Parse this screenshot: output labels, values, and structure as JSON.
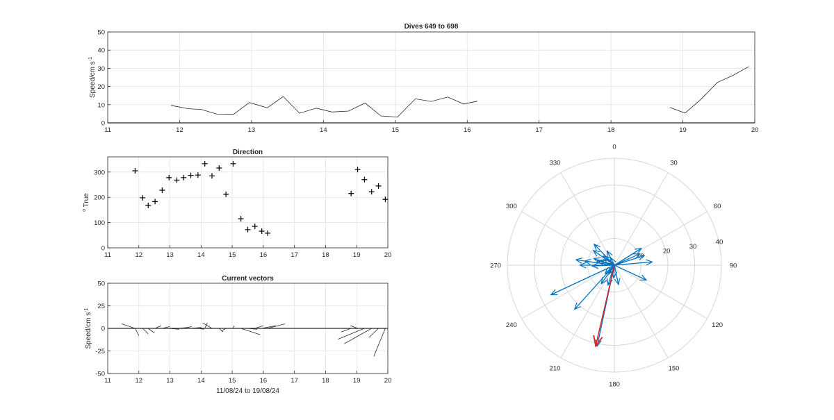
{
  "chart_data": [
    {
      "type": "line",
      "title": "Dives 649 to 698",
      "ylabel_main": "Speed/cm s",
      "ylabel_sup": "-1",
      "xlim": [
        11,
        20
      ],
      "ylim": [
        0,
        50
      ],
      "xticks": [
        11,
        12,
        13,
        14,
        15,
        16,
        17,
        18,
        19,
        20
      ],
      "yticks": [
        0,
        10,
        20,
        30,
        40,
        50
      ],
      "grid": true,
      "segments": [
        [
          [
            11.88,
            9.6
          ],
          [
            12.12,
            7.8
          ],
          [
            12.3,
            7.4
          ],
          [
            12.52,
            4.8
          ],
          [
            12.75,
            4.7
          ],
          [
            12.97,
            11.2
          ],
          [
            13.22,
            8.3
          ],
          [
            13.44,
            14.5
          ],
          [
            13.67,
            5.3
          ],
          [
            13.9,
            8.1
          ],
          [
            14.12,
            6.0
          ],
          [
            14.35,
            6.5
          ],
          [
            14.58,
            10.9
          ],
          [
            14.8,
            3.8
          ],
          [
            15.03,
            3.2
          ],
          [
            15.28,
            13.2
          ],
          [
            15.5,
            11.8
          ],
          [
            15.73,
            14.2
          ],
          [
            15.95,
            10.4
          ],
          [
            16.14,
            11.9
          ]
        ],
        [
          [
            18.82,
            8.5
          ],
          [
            19.03,
            5.4
          ],
          [
            19.25,
            12.9
          ],
          [
            19.48,
            22.2
          ],
          [
            19.7,
            26.2
          ],
          [
            19.92,
            31.0
          ]
        ]
      ]
    },
    {
      "type": "scatter",
      "title": "Direction",
      "ylabel_main": "True",
      "ylabel_sup": "o",
      "xlim": [
        11,
        20
      ],
      "ylim": [
        0,
        360
      ],
      "xticks": [
        11,
        12,
        13,
        14,
        15,
        16,
        17,
        18,
        19,
        20
      ],
      "yticks": [
        0,
        100,
        200,
        300
      ],
      "grid": true,
      "marker": "+",
      "points": [
        [
          11.88,
          305
        ],
        [
          12.12,
          198
        ],
        [
          12.3,
          168
        ],
        [
          12.52,
          183
        ],
        [
          12.75,
          228
        ],
        [
          12.97,
          278
        ],
        [
          13.22,
          268
        ],
        [
          13.44,
          278
        ],
        [
          13.67,
          287
        ],
        [
          13.9,
          288
        ],
        [
          14.12,
          333
        ],
        [
          14.35,
          285
        ],
        [
          14.58,
          316
        ],
        [
          14.8,
          212
        ],
        [
          15.03,
          333
        ],
        [
          15.28,
          115
        ],
        [
          15.5,
          72
        ],
        [
          15.73,
          85
        ],
        [
          15.95,
          66
        ],
        [
          16.14,
          58
        ],
        [
          18.82,
          215
        ],
        [
          19.03,
          310
        ],
        [
          19.25,
          270
        ],
        [
          19.48,
          222
        ],
        [
          19.7,
          245
        ],
        [
          19.92,
          192
        ]
      ]
    },
    {
      "type": "line",
      "title": "Current vectors",
      "ylabel_main": "Speed/cm s",
      "ylabel_sup": "-1",
      "xlabel": "11/08/24 to 19/08/24",
      "xlim": [
        11,
        20
      ],
      "ylim": [
        -50,
        50
      ],
      "xticks": [
        11,
        12,
        13,
        14,
        15,
        16,
        17,
        18,
        19,
        20
      ],
      "yticks": [
        -50,
        -25,
        0,
        25,
        50
      ],
      "grid": true,
      "segments": [
        [
          [
            11.45,
            5
          ],
          [
            11.88,
            0
          ]
        ],
        [
          [
            11.88,
            0
          ],
          [
            12.0,
            -8
          ]
        ],
        [
          [
            12.12,
            0
          ],
          [
            12.3,
            -6
          ]
        ],
        [
          [
            12.3,
            0
          ],
          [
            12.5,
            -5
          ]
        ],
        [
          [
            12.52,
            0
          ],
          [
            12.72,
            3
          ]
        ],
        [
          [
            12.75,
            0
          ],
          [
            13.0,
            2
          ]
        ],
        [
          [
            12.97,
            0
          ],
          [
            13.3,
            -1
          ]
        ],
        [
          [
            13.22,
            0
          ],
          [
            13.6,
            1
          ]
        ],
        [
          [
            13.44,
            0
          ],
          [
            13.7,
            2
          ]
        ],
        [
          [
            13.67,
            0
          ],
          [
            14.0,
            1
          ]
        ],
        [
          [
            13.9,
            0
          ],
          [
            14.1,
            -1
          ]
        ],
        [
          [
            14.12,
            0
          ],
          [
            14.2,
            6
          ]
        ],
        [
          [
            14.35,
            0
          ],
          [
            14.05,
            6
          ]
        ],
        [
          [
            14.58,
            0
          ],
          [
            14.7,
            -4
          ]
        ],
        [
          [
            14.8,
            0
          ],
          [
            14.65,
            -3
          ]
        ],
        [
          [
            15.03,
            0
          ],
          [
            15.06,
            3
          ]
        ],
        [
          [
            15.28,
            0
          ],
          [
            15.9,
            -7
          ]
        ],
        [
          [
            15.5,
            0
          ],
          [
            15.8,
            -1
          ]
        ],
        [
          [
            15.73,
            0
          ],
          [
            16.0,
            3
          ]
        ],
        [
          [
            15.95,
            0
          ],
          [
            16.4,
            3
          ]
        ],
        [
          [
            16.14,
            0
          ],
          [
            16.7,
            5
          ]
        ],
        [
          [
            18.82,
            0
          ],
          [
            18.5,
            -4
          ]
        ],
        [
          [
            19.03,
            0
          ],
          [
            18.8,
            3
          ]
        ],
        [
          [
            19.25,
            0
          ],
          [
            18.4,
            -12
          ]
        ],
        [
          [
            19.48,
            0
          ],
          [
            18.6,
            -17
          ]
        ],
        [
          [
            19.7,
            0
          ],
          [
            19.4,
            -10
          ]
        ],
        [
          [
            19.92,
            0
          ],
          [
            19.55,
            -31
          ]
        ]
      ]
    },
    {
      "type": "polar",
      "angle_ticks": [
        "0",
        "30",
        "60",
        "90",
        "120",
        "150",
        "180",
        "210",
        "240",
        "270",
        "300",
        "330"
      ],
      "radial_ticks": [
        "10",
        "20",
        "30",
        "40"
      ],
      "rmax": 40,
      "direction": "clockwise",
      "zero": "top",
      "arrow_color": "#0072BD",
      "mean_arrow_color": "#D62728",
      "arrows": [
        [
          305,
          9.6
        ],
        [
          198,
          7.8
        ],
        [
          168,
          7.4
        ],
        [
          183,
          4.8
        ],
        [
          228,
          4.7
        ],
        [
          278,
          11.2
        ],
        [
          268,
          8.3
        ],
        [
          278,
          14.5
        ],
        [
          287,
          5.3
        ],
        [
          288,
          8.1
        ],
        [
          333,
          6.0
        ],
        [
          285,
          6.5
        ],
        [
          316,
          10.9
        ],
        [
          212,
          3.8
        ],
        [
          333,
          3.2
        ],
        [
          115,
          13.2
        ],
        [
          72,
          11.8
        ],
        [
          85,
          14.2
        ],
        [
          66,
          10.4
        ],
        [
          58,
          11.9
        ],
        [
          215,
          8.5
        ],
        [
          310,
          5.4
        ],
        [
          270,
          12.9
        ],
        [
          222,
          22.2
        ],
        [
          245,
          26.2
        ],
        [
          192,
          31.0
        ]
      ],
      "mean_arrow": [
        193,
        31
      ]
    }
  ]
}
